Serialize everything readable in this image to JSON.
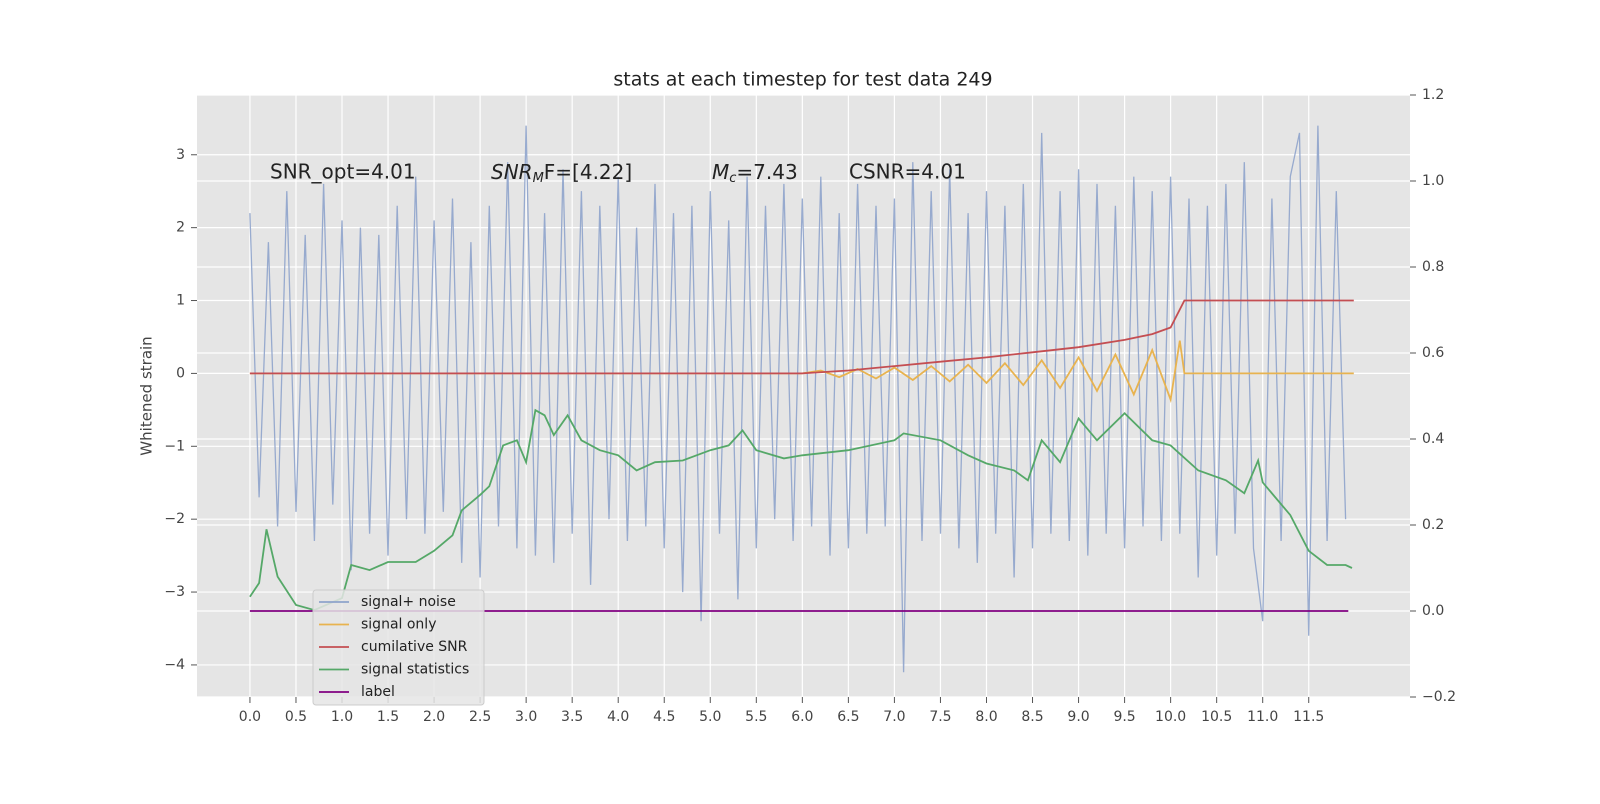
{
  "chart_data": {
    "type": "line",
    "title": "stats at each timestep for test data 249",
    "ylabel": "Whitened strain",
    "annotations": [
      "SNR_opt=4.01",
      {
        "main": "SNR",
        "sub": "M",
        "tail": "F=[4.22]"
      },
      {
        "main": "M",
        "sub": "c",
        "tail": "=7.43"
      },
      "CSNR=4.01"
    ],
    "xlim": [
      -0.575,
      12.6
    ],
    "ylim": [
      -4.44,
      3.82
    ],
    "y2lim": [
      -0.2,
      1.2
    ],
    "xticks": [
      {
        "value": 0,
        "label": "0.0"
      },
      0.5,
      {
        "value": 1,
        "label": "1.0"
      },
      1.5,
      {
        "value": 2,
        "label": "2.0"
      },
      2.5,
      {
        "value": 3,
        "label": "3.0"
      },
      3.5,
      {
        "value": 4,
        "label": "4.0"
      },
      4.5,
      {
        "value": 5,
        "label": "5.0"
      },
      5.5,
      {
        "value": 6,
        "label": "6.0"
      },
      6.5,
      {
        "value": 7,
        "label": "7.0"
      },
      7.5,
      {
        "value": 8,
        "label": "8.0"
      },
      8.5,
      {
        "value": 9,
        "label": "9.0"
      },
      9.5,
      {
        "value": 10,
        "label": "10.0"
      },
      10.5,
      {
        "value": 11,
        "label": "11.0"
      },
      11.5
    ],
    "yticks": [
      {
        "value": -4,
        "label": "−4"
      },
      {
        "value": -3,
        "label": "−3"
      },
      {
        "value": -2,
        "label": "−2"
      },
      {
        "value": -1,
        "label": "−1"
      },
      0,
      1,
      2,
      3
    ],
    "y2ticks": [
      {
        "value": -0.2,
        "label": "−0.2"
      },
      {
        "value": 0,
        "label": "0.0"
      },
      0.2,
      0.4,
      0.6,
      0.8,
      {
        "value": 1,
        "label": "1.0"
      },
      1.2
    ],
    "grid": true,
    "legend": "lower left",
    "series": [
      {
        "name": "signal+ noise",
        "color": "#8ea3cb",
        "x": [
          0,
          0.1,
          0.2,
          0.3,
          0.4,
          0.5,
          0.6,
          0.7,
          0.8,
          0.9,
          1.0,
          1.1,
          1.2,
          1.3,
          1.4,
          1.5,
          1.6,
          1.7,
          1.8,
          1.9,
          2.0,
          2.1,
          2.2,
          2.3,
          2.4,
          2.5,
          2.6,
          2.7,
          2.8,
          2.9,
          3.0,
          3.1,
          3.2,
          3.3,
          3.4,
          3.5,
          3.6,
          3.7,
          3.8,
          3.9,
          4.0,
          4.1,
          4.2,
          4.3,
          4.4,
          4.5,
          4.6,
          4.7,
          4.8,
          4.9,
          5.0,
          5.1,
          5.2,
          5.3,
          5.4,
          5.5,
          5.6,
          5.7,
          5.8,
          5.9,
          6.0,
          6.1,
          6.2,
          6.3,
          6.4,
          6.5,
          6.6,
          6.7,
          6.8,
          6.9,
          7.0,
          7.1,
          7.2,
          7.3,
          7.4,
          7.5,
          7.6,
          7.7,
          7.8,
          7.9,
          8.0,
          8.1,
          8.2,
          8.3,
          8.4,
          8.5,
          8.6,
          8.7,
          8.8,
          8.9,
          9.0,
          9.1,
          9.2,
          9.3,
          9.4,
          9.5,
          9.6,
          9.7,
          9.8,
          9.9,
          10.0,
          10.1,
          10.2,
          10.3,
          10.4,
          10.5,
          10.6,
          10.7,
          10.8,
          10.9,
          11.0,
          11.1,
          11.2,
          11.3,
          11.4,
          11.5,
          11.6,
          11.7,
          11.8,
          11.9
        ],
        "values": [
          2.2,
          -1.7,
          1.8,
          -2.1,
          2.5,
          -1.9,
          1.9,
          -2.3,
          2.6,
          -1.8,
          2.1,
          -2.7,
          2.0,
          -2.2,
          1.9,
          -2.5,
          2.3,
          -2.0,
          2.7,
          -2.2,
          2.1,
          -1.9,
          2.4,
          -2.6,
          1.8,
          -2.8,
          2.3,
          -2.1,
          2.9,
          -2.4,
          3.4,
          -2.5,
          2.2,
          -2.6,
          2.8,
          -2.2,
          2.5,
          -2.9,
          2.3,
          -2.0,
          2.7,
          -2.3,
          2.0,
          -2.1,
          2.6,
          -2.4,
          2.2,
          -3.0,
          2.3,
          -3.4,
          2.5,
          -2.2,
          2.1,
          -3.1,
          2.7,
          -2.4,
          2.3,
          -2.0,
          2.6,
          -2.3,
          2.4,
          -2.1,
          2.7,
          -2.5,
          2.2,
          -2.4,
          2.6,
          -2.2,
          2.3,
          -2.1,
          2.4,
          -4.1,
          2.9,
          -2.3,
          2.5,
          -2.2,
          2.8,
          -2.4,
          2.2,
          -2.6,
          2.5,
          -2.2,
          2.3,
          -2.8,
          2.6,
          -2.4,
          3.3,
          -2.2,
          2.5,
          -2.3,
          2.8,
          -2.5,
          2.6,
          -2.2,
          2.3,
          -2.4,
          2.7,
          -2.1,
          2.5,
          -2.3,
          2.7,
          -2.2,
          2.4,
          -2.8,
          2.3,
          -2.5,
          2.6,
          -2.2,
          2.9,
          -2.4,
          -3.4,
          2.4,
          -2.3,
          2.7,
          3.3,
          -3.6,
          3.4,
          -2.3,
          2.5,
          -2.0
        ]
      },
      {
        "name": "signal only",
        "color": "#e8b34f",
        "x": [
          0,
          6.0,
          6.2,
          6.4,
          6.6,
          6.8,
          7.0,
          7.2,
          7.4,
          7.6,
          7.8,
          8.0,
          8.2,
          8.4,
          8.6,
          8.8,
          9.0,
          9.2,
          9.4,
          9.6,
          9.8,
          10.0,
          10.1,
          10.15,
          11.99
        ],
        "values": [
          0,
          0,
          0.04,
          -0.05,
          0.06,
          -0.07,
          0.08,
          -0.09,
          0.1,
          -0.11,
          0.12,
          -0.13,
          0.14,
          -0.16,
          0.18,
          -0.2,
          0.22,
          -0.24,
          0.26,
          -0.29,
          0.32,
          -0.36,
          0.45,
          0,
          0
        ]
      },
      {
        "name": "cumilative SNR",
        "color": "#c44e52",
        "x": [
          0,
          6.0,
          6.5,
          7.0,
          7.5,
          8.0,
          8.5,
          9.0,
          9.5,
          9.8,
          10.0,
          10.15,
          11.99
        ],
        "values": [
          0,
          0,
          0.04,
          0.1,
          0.16,
          0.22,
          0.29,
          0.36,
          0.46,
          0.54,
          0.63,
          1.0,
          1.0
        ]
      },
      {
        "name": "signal statistics",
        "color": "#55a868",
        "axis": "y2",
        "x": [
          0,
          0.1,
          0.18,
          0.3,
          0.5,
          0.7,
          1.0,
          1.1,
          1.3,
          1.5,
          1.8,
          2.0,
          2.2,
          2.3,
          2.5,
          2.6,
          2.75,
          2.9,
          3.0,
          3.1,
          3.2,
          3.3,
          3.45,
          3.6,
          3.8,
          4.0,
          4.2,
          4.4,
          4.7,
          5.0,
          5.2,
          5.35,
          5.5,
          5.8,
          6.0,
          6.5,
          7.0,
          7.1,
          7.5,
          7.8,
          8.0,
          8.3,
          8.45,
          8.6,
          8.8,
          9.0,
          9.2,
          9.5,
          9.8,
          10.0,
          10.3,
          10.6,
          10.8,
          10.95,
          11.0,
          11.3,
          11.5,
          11.7,
          11.9,
          11.97
        ],
        "values": [
          0.033,
          0.065,
          0.19,
          0.08,
          0.014,
          0.002,
          0.03,
          0.107,
          0.095,
          0.114,
          0.114,
          0.14,
          0.176,
          0.234,
          0.27,
          0.29,
          0.385,
          0.397,
          0.346,
          0.467,
          0.455,
          0.409,
          0.455,
          0.397,
          0.374,
          0.362,
          0.327,
          0.346,
          0.35,
          0.374,
          0.385,
          0.42,
          0.374,
          0.355,
          0.362,
          0.374,
          0.397,
          0.413,
          0.397,
          0.362,
          0.343,
          0.327,
          0.304,
          0.397,
          0.346,
          0.448,
          0.397,
          0.46,
          0.397,
          0.385,
          0.327,
          0.304,
          0.274,
          0.35,
          0.299,
          0.223,
          0.14,
          0.107,
          0.107,
          0.1
        ]
      },
      {
        "name": "label",
        "color": "#800080",
        "axis": "y2",
        "x": [
          0,
          11.93
        ],
        "values": [
          0,
          0
        ]
      }
    ]
  }
}
